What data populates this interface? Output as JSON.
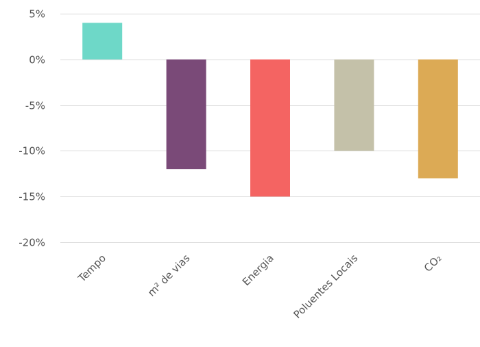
{
  "chart_data": {
    "type": "bar",
    "categories": [
      "Tempo",
      "m² de vias",
      "Energia",
      "Poluentes Locais",
      "CO₂"
    ],
    "values": [
      4,
      -12,
      -15,
      -10,
      -13
    ],
    "colors": [
      "#6ed8c8",
      "#7a4a78",
      "#f46462",
      "#c4c1a9",
      "#dcaa55"
    ],
    "y_ticks": [
      5,
      0,
      -5,
      -10,
      -15,
      -20
    ],
    "y_tick_labels": [
      "5%",
      "0%",
      "-5%",
      "-10%",
      "-15%",
      "-20%"
    ],
    "ylim": [
      -20,
      5
    ],
    "title": "",
    "xlabel": "",
    "ylabel": "",
    "grid": true,
    "legend": "none"
  }
}
